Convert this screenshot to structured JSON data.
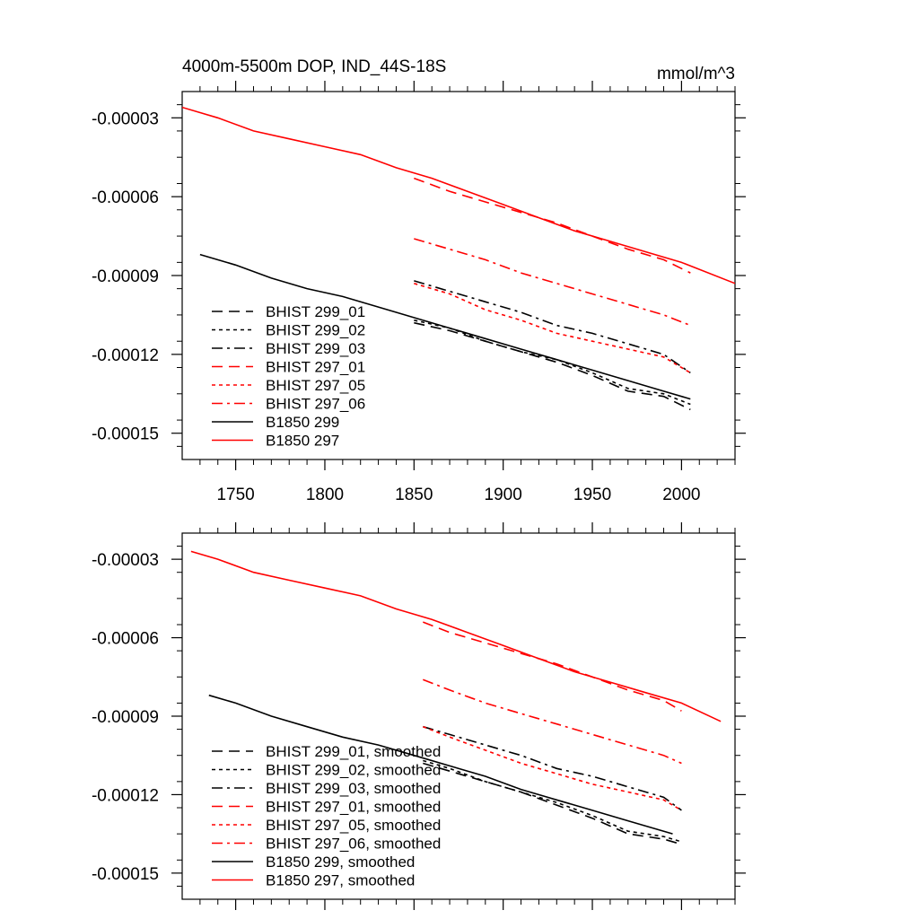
{
  "chart_data": [
    {
      "type": "line",
      "title": "4000m-5500m DOP, IND_44S-18S",
      "units_label": "mmol/m^3",
      "xlim": [
        1720,
        2030
      ],
      "ylim": [
        -0.00016,
        -2e-05
      ],
      "yticks": [
        -3e-05,
        -6e-05,
        -9e-05,
        -0.00012,
        -0.00015
      ],
      "yticklabels": [
        "-0.00003",
        "-0.00006",
        "-0.00009",
        "-0.00012",
        "-0.00015"
      ],
      "xticks": [
        1750,
        1800,
        1850,
        1900,
        1950,
        2000
      ],
      "xticklabels": [
        "1750",
        "1800",
        "1850",
        "1900",
        "1950",
        "2000"
      ],
      "grid": false,
      "legend_position": "lower-left",
      "series": [
        {
          "name": "BHIST 299_01",
          "color": "#000000",
          "dash": "dashed",
          "x": [
            1850,
            1870,
            1890,
            1910,
            1930,
            1950,
            1970,
            1990,
            2005
          ],
          "y": [
            -0.000108,
            -0.000111,
            -0.000115,
            -0.000119,
            -0.000123,
            -0.000128,
            -0.000134,
            -0.000136,
            -0.000141
          ]
        },
        {
          "name": "BHIST 299_02",
          "color": "#000000",
          "dash": "dotted",
          "x": [
            1850,
            1870,
            1890,
            1910,
            1930,
            1950,
            1970,
            1990,
            2005
          ],
          "y": [
            -0.000107,
            -0.00011,
            -0.000115,
            -0.000119,
            -0.000122,
            -0.000127,
            -0.000133,
            -0.000135,
            -0.000139
          ]
        },
        {
          "name": "BHIST 299_03",
          "color": "#000000",
          "dash": "dashdot",
          "x": [
            1850,
            1870,
            1890,
            1910,
            1930,
            1950,
            1970,
            1990,
            2005
          ],
          "y": [
            -9.2e-05,
            -9.6e-05,
            -0.0001,
            -0.000104,
            -0.000109,
            -0.000112,
            -0.000116,
            -0.00012,
            -0.000127
          ]
        },
        {
          "name": "BHIST 297_01",
          "color": "#ff0000",
          "dash": "dashed",
          "x": [
            1850,
            1870,
            1890,
            1910,
            1930,
            1950,
            1970,
            1990,
            2005
          ],
          "y": [
            -5.3e-05,
            -5.8e-05,
            -6.2e-05,
            -6.6e-05,
            -7e-05,
            -7.5e-05,
            -8e-05,
            -8.4e-05,
            -8.9e-05
          ]
        },
        {
          "name": "BHIST 297_05",
          "color": "#ff0000",
          "dash": "dotted",
          "x": [
            1850,
            1870,
            1890,
            1910,
            1930,
            1950,
            1970,
            1990,
            2005
          ],
          "y": [
            -9.3e-05,
            -9.7e-05,
            -0.000103,
            -0.000107,
            -0.000112,
            -0.000115,
            -0.000118,
            -0.000121,
            -0.000127
          ]
        },
        {
          "name": "BHIST 297_06",
          "color": "#ff0000",
          "dash": "dashdot",
          "x": [
            1850,
            1870,
            1890,
            1910,
            1930,
            1950,
            1970,
            1990,
            2005
          ],
          "y": [
            -7.6e-05,
            -8e-05,
            -8.4e-05,
            -8.9e-05,
            -9.3e-05,
            -9.7e-05,
            -0.000101,
            -0.000105,
            -0.000109
          ]
        },
        {
          "name": "B1850 299",
          "color": "#000000",
          "dash": "solid",
          "x": [
            1730,
            1750,
            1770,
            1790,
            1810,
            1830,
            1850,
            1870,
            1890,
            1910,
            1930,
            1950,
            1970,
            1990,
            2005
          ],
          "y": [
            -8.2e-05,
            -8.6e-05,
            -9.1e-05,
            -9.5e-05,
            -9.8e-05,
            -0.000102,
            -0.000106,
            -0.00011,
            -0.000114,
            -0.000118,
            -0.000122,
            -0.000126,
            -0.00013,
            -0.000134,
            -0.000137
          ]
        },
        {
          "name": "B1850 297",
          "color": "#ff0000",
          "dash": "solid",
          "x": [
            1720,
            1740,
            1760,
            1780,
            1800,
            1820,
            1840,
            1860,
            1880,
            1900,
            1920,
            1940,
            1960,
            1980,
            2000,
            2030
          ],
          "y": [
            -2.6e-05,
            -3e-05,
            -3.5e-05,
            -3.8e-05,
            -4.1e-05,
            -4.4e-05,
            -4.9e-05,
            -5.3e-05,
            -5.8e-05,
            -6.3e-05,
            -6.8e-05,
            -7.3e-05,
            -7.7e-05,
            -8.1e-05,
            -8.5e-05,
            -9.3e-05
          ]
        }
      ]
    },
    {
      "type": "line",
      "title": "",
      "xlim": [
        1720,
        2030
      ],
      "ylim": [
        -0.00016,
        -2e-05
      ],
      "yticks": [
        -3e-05,
        -6e-05,
        -9e-05,
        -0.00012,
        -0.00015
      ],
      "yticklabels": [
        "-0.00003",
        "-0.00006",
        "-0.00009",
        "-0.00012",
        "-0.00015"
      ],
      "xticks": [
        1750,
        1800,
        1850,
        1900,
        1950,
        2000
      ],
      "grid": false,
      "legend_position": "lower-left",
      "series": [
        {
          "name": "BHIST 299_01, smoothed",
          "color": "#000000",
          "dash": "dashed",
          "x": [
            1855,
            1870,
            1890,
            1910,
            1930,
            1950,
            1970,
            1990,
            2000
          ],
          "y": [
            -0.000108,
            -0.000111,
            -0.000115,
            -0.000119,
            -0.000124,
            -0.000129,
            -0.000135,
            -0.000137,
            -0.000139
          ]
        },
        {
          "name": "BHIST 299_02, smoothed",
          "color": "#000000",
          "dash": "dotted",
          "x": [
            1855,
            1870,
            1890,
            1910,
            1930,
            1950,
            1970,
            1990,
            2000
          ],
          "y": [
            -0.000107,
            -0.00011,
            -0.000115,
            -0.000119,
            -0.000123,
            -0.000128,
            -0.000134,
            -0.000136,
            -0.000138
          ]
        },
        {
          "name": "BHIST 299_03, smoothed",
          "color": "#000000",
          "dash": "dashdot",
          "x": [
            1855,
            1870,
            1890,
            1910,
            1930,
            1950,
            1970,
            1990,
            2000
          ],
          "y": [
            -9.4e-05,
            -9.7e-05,
            -0.000101,
            -0.000105,
            -0.00011,
            -0.000113,
            -0.000117,
            -0.000121,
            -0.000126
          ]
        },
        {
          "name": "BHIST 297_01, smoothed",
          "color": "#ff0000",
          "dash": "dashed",
          "x": [
            1855,
            1870,
            1890,
            1910,
            1930,
            1950,
            1970,
            1990,
            2000
          ],
          "y": [
            -5.4e-05,
            -5.8e-05,
            -6.2e-05,
            -6.6e-05,
            -7e-05,
            -7.5e-05,
            -8e-05,
            -8.4e-05,
            -8.8e-05
          ]
        },
        {
          "name": "BHIST 297_05, smoothed",
          "color": "#ff0000",
          "dash": "dotted",
          "x": [
            1855,
            1870,
            1890,
            1910,
            1930,
            1950,
            1970,
            1990,
            2000
          ],
          "y": [
            -9.4e-05,
            -9.8e-05,
            -0.000103,
            -0.000108,
            -0.000112,
            -0.000116,
            -0.000119,
            -0.000122,
            -0.000126
          ]
        },
        {
          "name": "BHIST 297_06, smoothed",
          "color": "#ff0000",
          "dash": "dashdot",
          "x": [
            1855,
            1870,
            1890,
            1910,
            1930,
            1950,
            1970,
            1990,
            2000
          ],
          "y": [
            -7.6e-05,
            -8e-05,
            -8.5e-05,
            -8.9e-05,
            -9.3e-05,
            -9.7e-05,
            -0.000101,
            -0.000105,
            -0.000108
          ]
        },
        {
          "name": "B1850 299, smoothed",
          "color": "#000000",
          "dash": "solid",
          "x": [
            1735,
            1750,
            1770,
            1790,
            1810,
            1830,
            1850,
            1870,
            1890,
            1910,
            1930,
            1950,
            1970,
            1995
          ],
          "y": [
            -8.2e-05,
            -8.5e-05,
            -9e-05,
            -9.4e-05,
            -9.8e-05,
            -0.000101,
            -0.000105,
            -0.000109,
            -0.000113,
            -0.000118,
            -0.000122,
            -0.000126,
            -0.00013,
            -0.000135
          ]
        },
        {
          "name": "B1850 297, smoothed",
          "color": "#ff0000",
          "dash": "solid",
          "x": [
            1725,
            1740,
            1760,
            1780,
            1800,
            1820,
            1840,
            1860,
            1880,
            1900,
            1920,
            1940,
            1960,
            1980,
            2000,
            2022
          ],
          "y": [
            -2.7e-05,
            -3e-05,
            -3.5e-05,
            -3.8e-05,
            -4.1e-05,
            -4.4e-05,
            -4.9e-05,
            -5.3e-05,
            -5.8e-05,
            -6.3e-05,
            -6.8e-05,
            -7.3e-05,
            -7.7e-05,
            -8.1e-05,
            -8.5e-05,
            -9.2e-05
          ]
        }
      ]
    }
  ]
}
